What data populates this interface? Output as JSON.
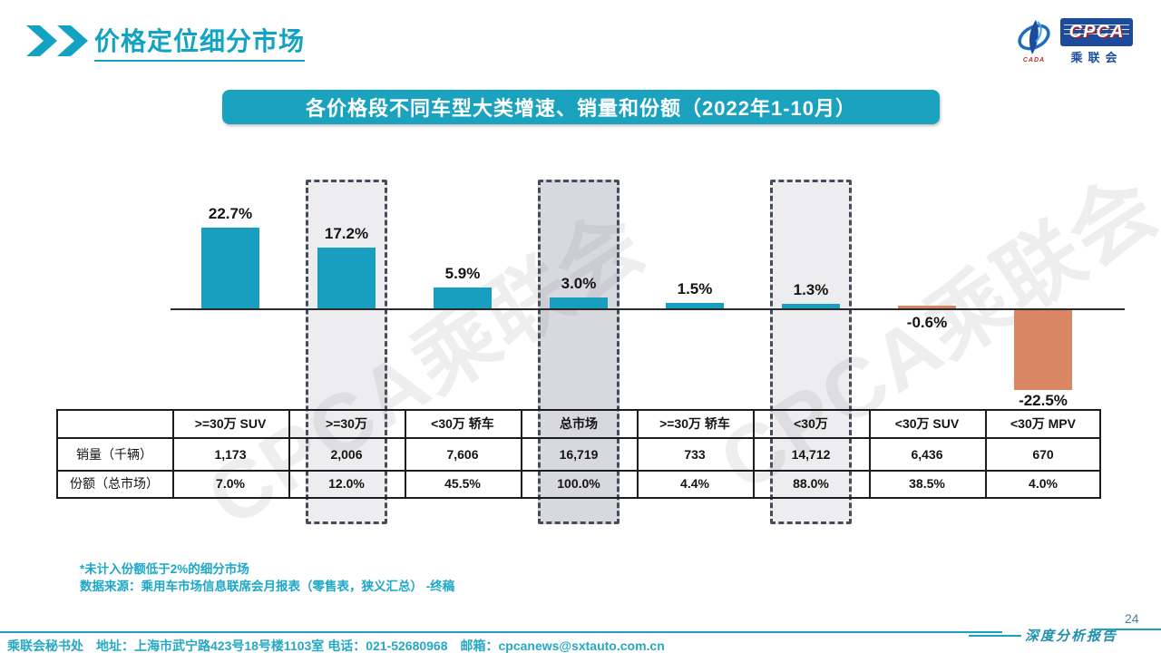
{
  "page": {
    "title": "价格定位细分市场"
  },
  "logo": {
    "cada": "CADA",
    "cpca": "CPCA",
    "sub": "乘联会"
  },
  "banner": {
    "title": "各价格段不同车型大类增速、销量和份额（2022年1-10月）"
  },
  "watermark": {
    "text": "CPCA乘联会"
  },
  "chart_data": {
    "type": "bar",
    "title": "各价格段不同车型大类增速、销量和份额（2022年1-10月）",
    "categories": [
      ">=30万 SUV",
      ">=30万",
      "<30万 轿车",
      "总市场",
      ">=30万 轿车",
      "<30万",
      "<30万 SUV",
      "<30万 MPV"
    ],
    "series": [
      {
        "name": "增速",
        "unit": "%",
        "values": [
          22.7,
          17.2,
          5.9,
          3.0,
          1.5,
          1.3,
          -0.6,
          -22.5
        ]
      },
      {
        "name": "销量（千辆）",
        "values": [
          1173,
          2006,
          7606,
          16719,
          733,
          14712,
          6436,
          670
        ]
      },
      {
        "name": "份额（总市场）",
        "unit": "%",
        "values": [
          7.0,
          12.0,
          45.5,
          100.0,
          4.4,
          88.0,
          38.5,
          4.0
        ]
      }
    ],
    "value_labels": [
      "22.7%",
      "17.2%",
      "5.9%",
      "3.0%",
      "1.5%",
      "1.3%",
      "-0.6%",
      "-22.5%"
    ],
    "sales_labels": [
      "1,173",
      "2,006",
      "7,606",
      "16,719",
      "733",
      "14,712",
      "6,436",
      "670"
    ],
    "share_labels": [
      "7.0%",
      "12.0%",
      "45.5%",
      "100.0%",
      "4.4%",
      "88.0%",
      "38.5%",
      "4.0%"
    ],
    "highlighted": [
      false,
      "light",
      false,
      "dark",
      false,
      "light",
      false,
      false
    ],
    "bar_colors": {
      "positive": "#189FBF",
      "negative": "#D88664"
    },
    "highlight_fills": {
      "light": "#EDEDEF",
      "dark": "#D8D8DF"
    },
    "ylim": [
      -25,
      25
    ],
    "grid": false,
    "legend": false
  },
  "table": {
    "row_headers": [
      "销量（千辆）",
      "份额（总市场）"
    ]
  },
  "notes": {
    "line1": "*未计入份额低于2%的细分市场",
    "line2": "数据来源：乘用车市场信息联席会月报表（零售表，狭义汇总） -终稿"
  },
  "footer": {
    "text": "乘联会秘书处　地址：上海市武宁路423号18号楼1103室 电话：021-52680968　邮箱：cpcanews@sxtauto.com.cn",
    "report_label": "深度分析报告",
    "page_number": "24"
  }
}
